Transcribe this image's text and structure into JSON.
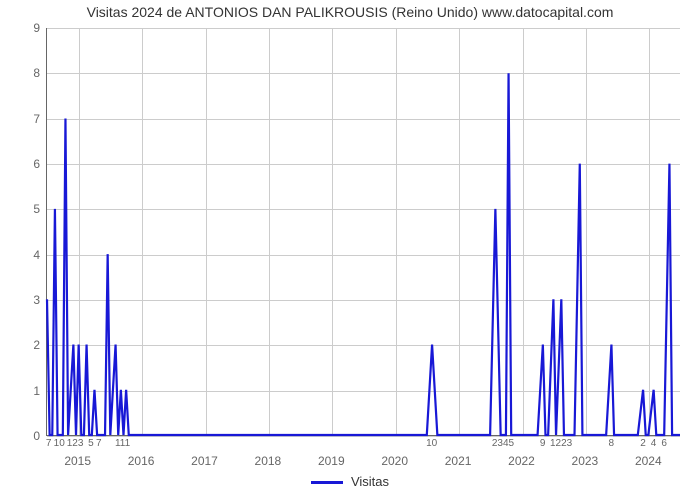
{
  "chart": {
    "type": "line",
    "title": "Visitas 2024 de ANTONIOS DAN PALIKROUSIS (Reino Unido) www.datocapital.com",
    "title_fontsize": 14,
    "title_color": "#333333",
    "background_color": "#ffffff",
    "grid_color": "#cccccc",
    "axis_color": "#666666",
    "tick_font_color": "#666666",
    "tick_fontsize": 12,
    "minor_tick_fontsize": 10,
    "y": {
      "min": 0,
      "max": 9,
      "ticks": [
        0,
        1,
        2,
        3,
        4,
        5,
        6,
        7,
        8,
        9
      ]
    },
    "x": {
      "min": 0,
      "max": 120,
      "year_ticks": [
        {
          "pos": 6,
          "label": "2015"
        },
        {
          "pos": 18,
          "label": "2016"
        },
        {
          "pos": 30,
          "label": "2017"
        },
        {
          "pos": 42,
          "label": "2018"
        },
        {
          "pos": 54,
          "label": "2019"
        },
        {
          "pos": 66,
          "label": "2020"
        },
        {
          "pos": 78,
          "label": "2021"
        },
        {
          "pos": 90,
          "label": "2022"
        },
        {
          "pos": 102,
          "label": "2023"
        },
        {
          "pos": 114,
          "label": "2024"
        }
      ],
      "minor_ticks": [
        {
          "pos": 0.5,
          "label": "7"
        },
        {
          "pos": 2.5,
          "label": "10"
        },
        {
          "pos": 5.5,
          "label": "123"
        },
        {
          "pos": 8.5,
          "label": "5"
        },
        {
          "pos": 10.0,
          "label": "7"
        },
        {
          "pos": 14.5,
          "label": "111"
        },
        {
          "pos": 73.0,
          "label": "10"
        },
        {
          "pos": 86.5,
          "label": "2345"
        },
        {
          "pos": 94.0,
          "label": "9"
        },
        {
          "pos": 97.5,
          "label": "1223"
        },
        {
          "pos": 107.0,
          "label": "8"
        },
        {
          "pos": 113.0,
          "label": "2"
        },
        {
          "pos": 115.0,
          "label": "4"
        },
        {
          "pos": 117.0,
          "label": "6"
        }
      ]
    },
    "series": {
      "label": "Visitas",
      "color": "#1818d6",
      "line_width": 2.2,
      "points": [
        [
          0,
          3
        ],
        [
          0.5,
          0
        ],
        [
          1,
          0
        ],
        [
          1.5,
          5
        ],
        [
          2,
          0
        ],
        [
          2.5,
          0
        ],
        [
          3,
          0
        ],
        [
          3.5,
          7
        ],
        [
          4,
          0
        ],
        [
          5,
          2
        ],
        [
          5.5,
          0
        ],
        [
          6,
          2
        ],
        [
          6.5,
          0
        ],
        [
          7,
          0
        ],
        [
          7.5,
          2
        ],
        [
          8,
          0
        ],
        [
          8.5,
          0
        ],
        [
          9,
          1
        ],
        [
          9.5,
          0
        ],
        [
          10,
          0
        ],
        [
          11,
          0
        ],
        [
          11.5,
          4
        ],
        [
          12,
          0
        ],
        [
          13,
          2
        ],
        [
          13.5,
          0
        ],
        [
          14,
          1
        ],
        [
          14.5,
          0
        ],
        [
          15,
          1
        ],
        [
          15.5,
          0
        ],
        [
          16,
          0
        ],
        [
          17,
          0
        ],
        [
          18,
          0
        ],
        [
          20,
          0
        ],
        [
          25,
          0
        ],
        [
          30,
          0
        ],
        [
          35,
          0
        ],
        [
          40,
          0
        ],
        [
          45,
          0
        ],
        [
          50,
          0
        ],
        [
          55,
          0
        ],
        [
          60,
          0
        ],
        [
          65,
          0
        ],
        [
          70,
          0
        ],
        [
          72,
          0
        ],
        [
          73,
          2
        ],
        [
          74,
          0
        ],
        [
          76,
          0
        ],
        [
          80,
          0
        ],
        [
          83,
          0
        ],
        [
          84,
          0
        ],
        [
          85,
          5
        ],
        [
          86,
          0
        ],
        [
          86.5,
          0
        ],
        [
          87,
          0
        ],
        [
          87.5,
          8
        ],
        [
          88,
          0
        ],
        [
          88.5,
          0
        ],
        [
          89,
          0
        ],
        [
          90,
          0
        ],
        [
          91,
          0
        ],
        [
          92,
          0
        ],
        [
          93,
          0
        ],
        [
          94,
          2
        ],
        [
          94.5,
          0
        ],
        [
          95,
          0
        ],
        [
          96,
          3
        ],
        [
          96.5,
          0
        ],
        [
          97.5,
          3
        ],
        [
          98,
          0
        ],
        [
          98.5,
          0
        ],
        [
          99,
          0
        ],
        [
          100,
          0
        ],
        [
          101,
          6
        ],
        [
          101.5,
          0
        ],
        [
          103,
          0
        ],
        [
          104,
          0
        ],
        [
          105,
          0
        ],
        [
          106,
          0
        ],
        [
          107,
          2
        ],
        [
          107.5,
          0
        ],
        [
          109,
          0
        ],
        [
          110,
          0
        ],
        [
          111,
          0
        ],
        [
          112,
          0
        ],
        [
          113,
          1
        ],
        [
          113.5,
          0
        ],
        [
          114,
          0
        ],
        [
          115,
          1
        ],
        [
          115.5,
          0
        ],
        [
          116,
          0
        ],
        [
          117,
          0
        ],
        [
          118,
          6
        ],
        [
          118.5,
          0
        ],
        [
          119,
          0
        ],
        [
          120,
          0
        ]
      ]
    },
    "legend": {
      "label": "Visitas",
      "swatch_color": "#1818d6"
    }
  }
}
